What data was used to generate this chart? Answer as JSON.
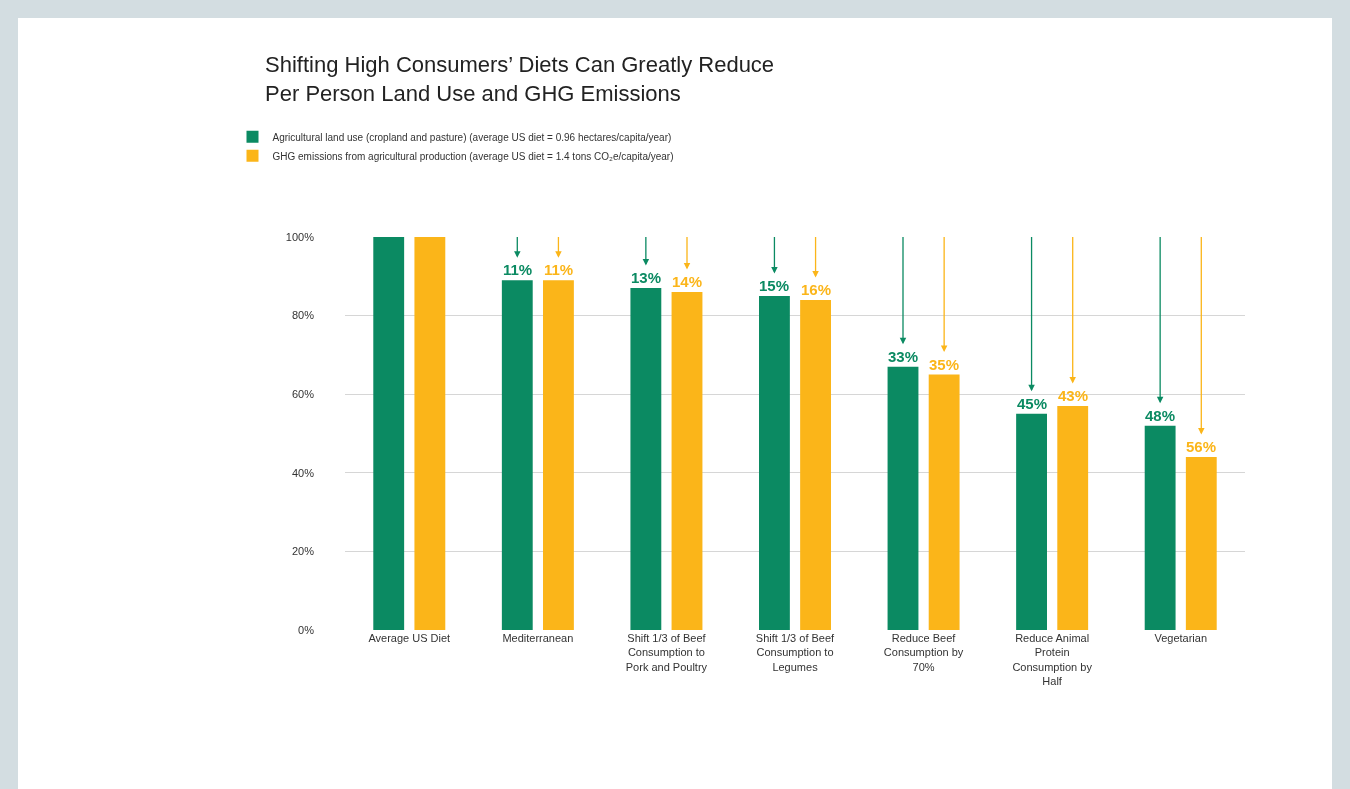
{
  "chart_data": {
    "type": "bar",
    "title": "Shifting High Consumers’ Diets Can Greatly Reduce\nPer Person Land Use and GHG Emissions",
    "categories": [
      "Average US Diet",
      "Mediterranean",
      "Shift 1/3 of Beef Consumption to Pork and Poultry",
      "Shift 1/3 of Beef Consumption to Legumes",
      "Reduce Beef Consumption by 70%",
      "Reduce Animal Protein Consumption by Half",
      "Vegetarian"
    ],
    "series": [
      {
        "name": "Agricultural land use (cropland and pasture) (average US diet = 0.96 hectares/capita/year)",
        "color": "#0b8a62",
        "values": [
          100,
          89,
          87,
          85,
          67,
          55,
          52
        ]
      },
      {
        "name": "GHG emissions from agricultural production (average US diet = 1.4 tons CO₂e/capita/year)",
        "color": "#fbb519",
        "values": [
          100,
          89,
          86,
          84,
          65,
          57,
          44
        ]
      }
    ],
    "annotations": [
      "11%",
      "11%",
      "13%",
      "14%",
      "15%",
      "16%",
      "33%",
      "35%",
      "45%",
      "43%",
      "48%",
      "56%"
    ],
    "ylim": [
      0,
      100
    ],
    "yticks": [
      {
        "value": 0,
        "label": "0%"
      },
      {
        "value": 20,
        "label": "20%"
      },
      {
        "value": 40,
        "label": "40%"
      },
      {
        "value": 60,
        "label": "60%"
      },
      {
        "value": 80,
        "label": "80%"
      },
      {
        "value": 100,
        "label": "100%"
      }
    ],
    "grid": "y",
    "legend": "top left"
  }
}
